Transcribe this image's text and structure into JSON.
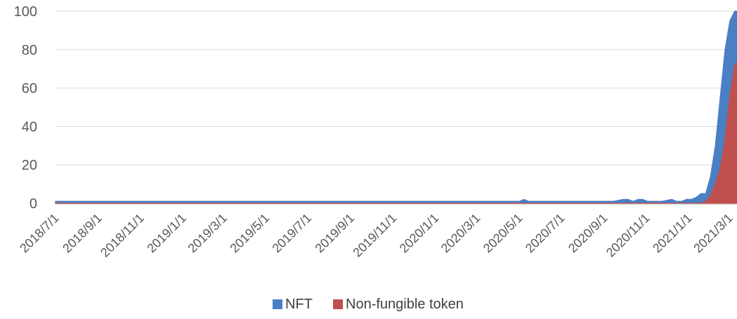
{
  "chart_data": {
    "type": "area",
    "title": "",
    "xlabel": "",
    "ylabel": "",
    "ylim": [
      0,
      100
    ],
    "yticks": [
      0,
      20,
      40,
      60,
      80,
      100
    ],
    "grid": true,
    "legend_position": "bottom",
    "x_tick_labels": [
      "2018/7/1",
      "2018/9/1",
      "2018/11/1",
      "2019/1/1",
      "2019/3/1",
      "2019/5/1",
      "2019/7/1",
      "2019/9/1",
      "2019/11/1",
      "2020/1/1",
      "2020/3/1",
      "2020/5/1",
      "2020/7/1",
      "2020/9/1",
      "2020/11/1",
      "2021/1/1",
      "2021/3/1"
    ],
    "x": [
      "2018/7/1",
      "2019/7/1",
      "2020/1/1",
      "2020/5/1",
      "2020/5/8",
      "2020/5/15",
      "2020/5/22",
      "2020/7/1",
      "2020/9/1",
      "2020/9/15",
      "2020/9/29",
      "2020/10/6",
      "2020/10/13",
      "2020/10/20",
      "2020/10/27",
      "2020/11/3",
      "2020/11/10",
      "2020/11/24",
      "2020/12/8",
      "2020/12/15",
      "2020/12/22",
      "2020/12/29",
      "2021/1/5",
      "2021/1/12",
      "2021/1/19",
      "2021/1/26",
      "2021/2/2",
      "2021/2/9",
      "2021/2/16",
      "2021/2/23",
      "2021/3/2",
      "2021/3/9",
      "2021/3/16",
      "2021/3/21"
    ],
    "series": [
      {
        "name": "NFT",
        "color": "#4a7fc4",
        "values": [
          1,
          1,
          1,
          1,
          2,
          1,
          1,
          1,
          1,
          1,
          2,
          2,
          1,
          2,
          2,
          1,
          1,
          1,
          2,
          1,
          1,
          2,
          2,
          3,
          5,
          5,
          14,
          30,
          55,
          80,
          95,
          100,
          100,
          100
        ]
      },
      {
        "name": "Non-fungible token",
        "color": "#c0504d",
        "values": [
          0,
          0,
          0,
          0,
          0,
          0,
          0,
          0,
          0,
          0,
          0,
          0,
          0,
          0,
          0,
          0,
          0,
          0,
          0,
          0,
          0,
          0,
          0,
          0,
          0,
          1,
          4,
          10,
          18,
          33,
          56,
          72,
          75,
          75
        ]
      }
    ]
  }
}
